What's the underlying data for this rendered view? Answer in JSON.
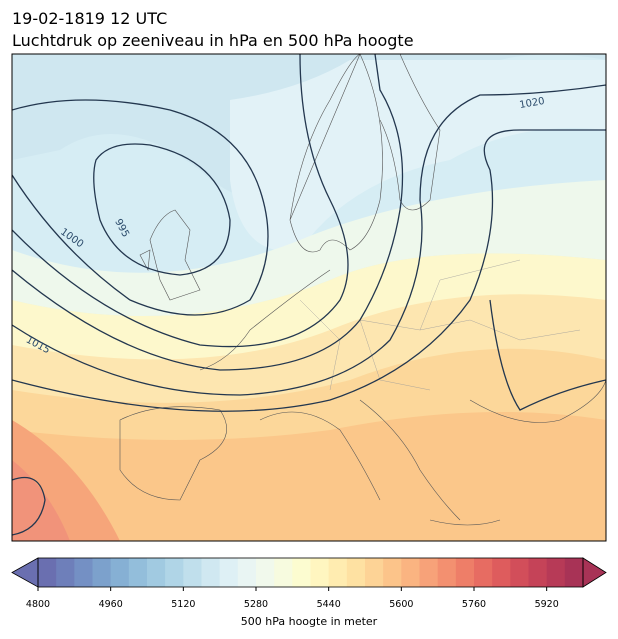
{
  "title": {
    "date": "19-02-1819 12 UTC",
    "description": "Luchtdruk op zeeniveau in hPa en 500 hPa hoogte"
  },
  "isobar_labels": [
    1020,
    995,
    1000,
    1015
  ],
  "colorbar": {
    "label": "500 hPa hoogte in meter",
    "lim": [
      4800,
      6000
    ],
    "ticks": [
      4800,
      4960,
      5120,
      5280,
      5440,
      5600,
      5760,
      5920
    ],
    "colors": [
      "#6a6fb0",
      "#6e7fba",
      "#7490c4",
      "#7ca1cc",
      "#86b0d4",
      "#93bedb",
      "#a1cae1",
      "#b0d5e7",
      "#c0dfec",
      "#d0e8f1",
      "#def0f5",
      "#e9f5f3",
      "#f1f9ec",
      "#f7fbdf",
      "#fcfcd0",
      "#fff6c0",
      "#ffecb0",
      "#fee1a2",
      "#fdd396",
      "#fcc48a",
      "#fab481",
      "#f7a279",
      "#f39070",
      "#ee7e68",
      "#e76c62",
      "#de5c5d",
      "#d24e5a",
      "#c54358",
      "#b73a57",
      "#a83356"
    ]
  }
}
